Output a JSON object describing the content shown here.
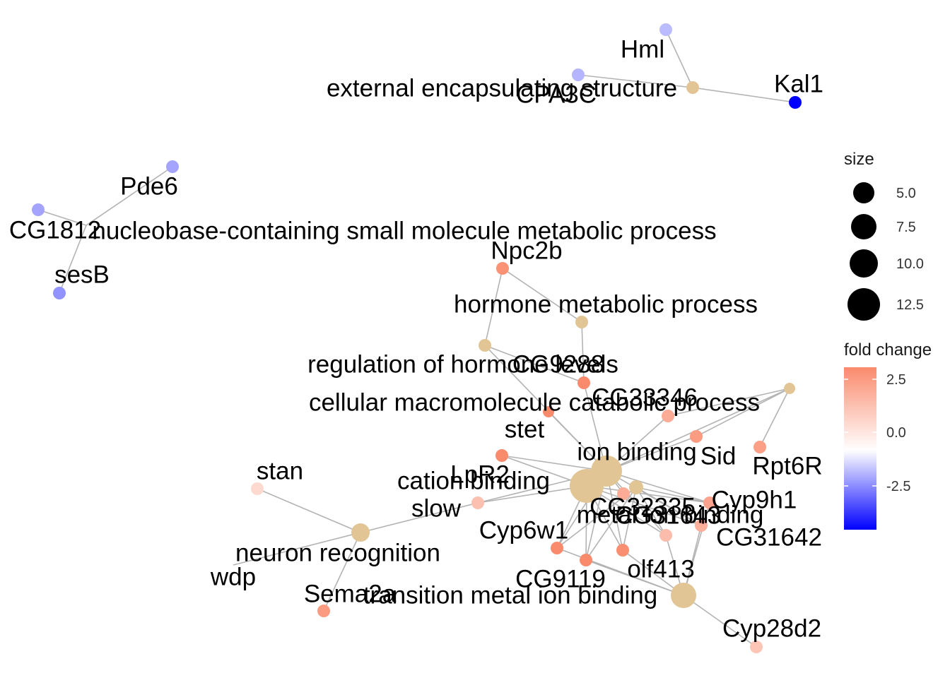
{
  "legend": {
    "size_title": "size",
    "size_ticks": [
      "5.0",
      "7.5",
      "10.0",
      "12.5"
    ],
    "color_title": "fold change",
    "color_ticks": [
      "2.5",
      "0.0",
      "-2.5"
    ],
    "color_low": "#0000ff",
    "color_mid": "#ffffff",
    "color_high": "#fa8a6c"
  },
  "category_color": "#e2c594",
  "categories": [
    {
      "id": "c_ext",
      "label": "external encapsulating structure"
    },
    {
      "id": "c_nuc",
      "label": "nucleobase-containing small molecule metabolic process"
    },
    {
      "id": "c_hmp",
      "label": "hormone metabolic process"
    },
    {
      "id": "c_rhl",
      "label": "regulation of hormone levels"
    },
    {
      "id": "c_cmc",
      "label": "cellular macromolecule catabolic process"
    },
    {
      "id": "c_ion",
      "label": "ion binding"
    },
    {
      "id": "c_cat",
      "label": "cation binding"
    },
    {
      "id": "c_met",
      "label": "metal ion binding"
    },
    {
      "id": "c_nr",
      "label": "neuron recognition"
    },
    {
      "id": "c_tmi",
      "label": "transition metal ion binding"
    }
  ],
  "genes": [
    {
      "id": "Hml",
      "label": "Hml",
      "fold_change": -1.2
    },
    {
      "id": "CPA3C",
      "label": "CPA3C",
      "fold_change": -1.3
    },
    {
      "id": "Kal1",
      "label": "Kal1",
      "fold_change": -4.5
    },
    {
      "id": "Pde6",
      "label": "Pde6",
      "fold_change": -1.6
    },
    {
      "id": "CG1812",
      "label": "CG1812",
      "fold_change": -1.6
    },
    {
      "id": "sesB",
      "label": "sesB",
      "fold_change": -1.9
    },
    {
      "id": "Npc2b",
      "label": "Npc2b",
      "fold_change": 2.6
    },
    {
      "id": "CG9288",
      "label": "CG9288",
      "fold_change": 2.9
    },
    {
      "id": "CG33346",
      "label": "CG33346",
      "fold_change": 2.0
    },
    {
      "id": "stet",
      "label": "stet",
      "fold_change": 2.8
    },
    {
      "id": "Sid",
      "label": "Sid",
      "fold_change": 2.4
    },
    {
      "id": "Rpt6R",
      "label": "Rpt6R",
      "fold_change": 2.3
    },
    {
      "id": "stan",
      "label": "stan",
      "fold_change": 0.9
    },
    {
      "id": "LpR2",
      "label": "LpR2",
      "fold_change": 2.8
    },
    {
      "id": "slow",
      "label": "slow",
      "fold_change": 1.5
    },
    {
      "id": "CG32335",
      "label": "CG32335",
      "fold_change": 2.0
    },
    {
      "id": "Cyp9h1",
      "label": "Cyp9h1",
      "fold_change": 2.2
    },
    {
      "id": "CG31642",
      "label": "CG31642",
      "fold_change": 1.9
    },
    {
      "id": "Cyp6w1",
      "label": "Cyp6w1",
      "fold_change": 3.4
    },
    {
      "id": "CG9119",
      "label": "CG9119",
      "fold_change": 3.5
    },
    {
      "id": "olf413",
      "label": "olf413",
      "fold_change": 2.7
    },
    {
      "id": "CG31643",
      "label": "CG31643",
      "fold_change": 1.6
    },
    {
      "id": "Cyp28d2",
      "label": "Cyp28d2",
      "fold_change": 1.4
    },
    {
      "id": "wdp",
      "label": "wdp",
      "fold_change": 1.0
    },
    {
      "id": "Sema2a",
      "label": "Sema2a",
      "fold_change": 2.4
    }
  ],
  "edges": [
    [
      "c_ext",
      "Hml"
    ],
    [
      "c_ext",
      "CPA3C"
    ],
    [
      "c_ext",
      "Kal1"
    ],
    [
      "c_nuc",
      "Pde6"
    ],
    [
      "c_nuc",
      "CG1812"
    ],
    [
      "c_nuc",
      "sesB"
    ],
    [
      "c_rhl",
      "Npc2b"
    ],
    [
      "c_hmp",
      "Npc2b"
    ],
    [
      "c_rhl",
      "CG9288"
    ],
    [
      "c_hmp",
      "CG9288"
    ],
    [
      "c_rhl",
      "c_ion"
    ],
    [
      "c_cmc",
      "CG33346"
    ],
    [
      "c_cmc",
      "Sid"
    ],
    [
      "c_cmc",
      "Rpt6R"
    ],
    [
      "c_cmc",
      "c_ion"
    ],
    [
      "c_ion",
      "LpR2"
    ],
    [
      "c_ion",
      "slow"
    ],
    [
      "c_ion",
      "stet"
    ],
    [
      "c_ion",
      "CG32335"
    ],
    [
      "c_ion",
      "Cyp9h1"
    ],
    [
      "c_ion",
      "CG31642"
    ],
    [
      "c_ion",
      "Cyp6w1"
    ],
    [
      "c_ion",
      "CG9119"
    ],
    [
      "c_ion",
      "olf413"
    ],
    [
      "c_ion",
      "CG31643"
    ],
    [
      "c_ion",
      "CG33346"
    ],
    [
      "c_ion",
      "Sid"
    ],
    [
      "c_ion",
      "CG9288"
    ],
    [
      "c_cat",
      "LpR2"
    ],
    [
      "c_cat",
      "slow"
    ],
    [
      "c_cat",
      "Cyp6w1"
    ],
    [
      "c_cat",
      "CG9119"
    ],
    [
      "c_cat",
      "olf413"
    ],
    [
      "c_cat",
      "CG31643"
    ],
    [
      "c_cat",
      "Cyp9h1"
    ],
    [
      "c_cat",
      "CG31642"
    ],
    [
      "c_met",
      "Cyp6w1"
    ],
    [
      "c_met",
      "CG9119"
    ],
    [
      "c_met",
      "olf413"
    ],
    [
      "c_met",
      "CG31643"
    ],
    [
      "c_met",
      "Cyp9h1"
    ],
    [
      "c_met",
      "CG31642"
    ],
    [
      "c_tmi",
      "Cyp6w1"
    ],
    [
      "c_tmi",
      "CG9119"
    ],
    [
      "c_tmi",
      "olf413"
    ],
    [
      "c_tmi",
      "CG31643"
    ],
    [
      "c_tmi",
      "Cyp9h1"
    ],
    [
      "c_tmi",
      "CG31642"
    ],
    [
      "c_tmi",
      "Cyp28d2"
    ],
    [
      "c_nr",
      "stan"
    ],
    [
      "c_nr",
      "slow"
    ],
    [
      "c_nr",
      "Sema2a"
    ],
    [
      "c_nr",
      "wdp"
    ]
  ]
}
